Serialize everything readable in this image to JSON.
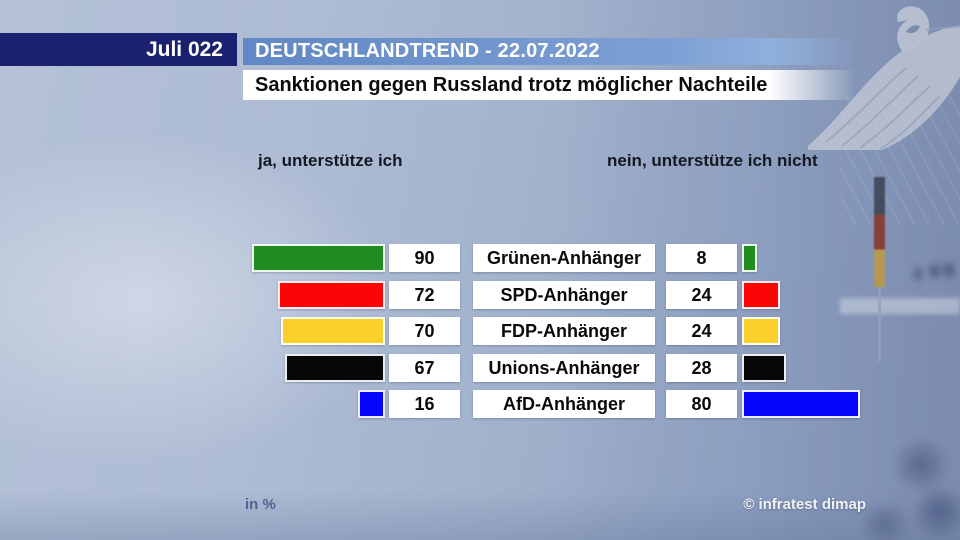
{
  "header": {
    "date_box": "Juli 022",
    "title": "DEUTSCHLANDTREND - 22.07.2022",
    "subtitle": "Sanktionen gegen Russland trotz möglicher Nachteile"
  },
  "columns": {
    "left": "ja, unterstütze ich",
    "right": "nein, unterstütze ich nicht"
  },
  "footer": {
    "unit": "in %",
    "source": "© infratest dimap"
  },
  "chart_data": {
    "type": "bar",
    "title": "Sanktionen gegen Russland trotz möglicher Nachteile",
    "unit": "%",
    "xlim": [
      0,
      100
    ],
    "categories": [
      "Grünen-Anhänger",
      "SPD-Anhänger",
      "FDP-Anhänger",
      "Unions-Anhänger",
      "AfD-Anhänger"
    ],
    "series": [
      {
        "name": "ja, unterstütze ich",
        "values": [
          90,
          72,
          70,
          67,
          16
        ]
      },
      {
        "name": "nein, unterstütze ich nicht",
        "values": [
          8,
          24,
          24,
          28,
          80
        ]
      }
    ],
    "colors": [
      "#1e8c1e",
      "#fa0606",
      "#fcd02c",
      "#070707",
      "#0505fa"
    ]
  }
}
